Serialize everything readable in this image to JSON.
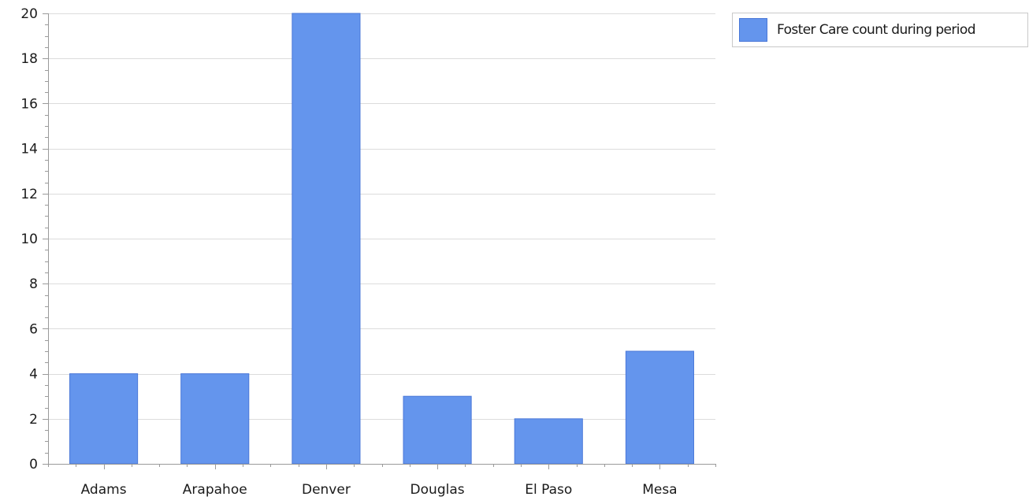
{
  "chart_data": {
    "type": "bar",
    "categories": [
      "Adams",
      "Arapahoe",
      "Denver",
      "Douglas",
      "El Paso",
      "Mesa"
    ],
    "series": [
      {
        "name": "Foster Care count during period",
        "values": [
          4,
          4,
          20,
          3,
          2,
          5
        ],
        "color": "#6495ed"
      }
    ],
    "ylim": [
      0,
      20
    ],
    "yticks": [
      0,
      2,
      4,
      6,
      8,
      10,
      12,
      14,
      16,
      18,
      20
    ],
    "title": "",
    "xlabel": "",
    "ylabel": "",
    "grid": true,
    "legend_position": "top-right"
  },
  "legend": {
    "label": "Foster Care count during period",
    "color": "#6495ed"
  }
}
